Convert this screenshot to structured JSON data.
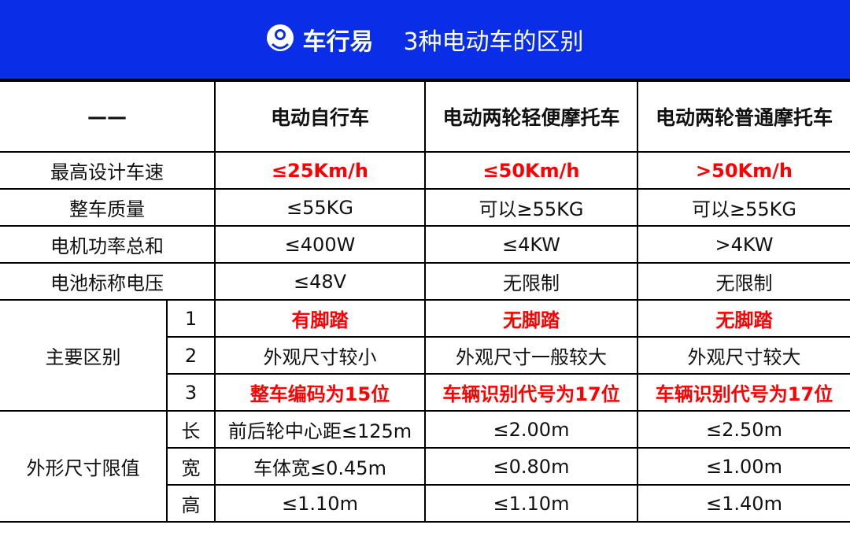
{
  "banner": {
    "brand": "车行易",
    "title": "3种电动车的区别",
    "color": "#0a2ee8",
    "logo_icon": "chexingyi-logo-icon"
  },
  "table": {
    "header": [
      "——",
      "电动自行车",
      "电动两轮轻便摩托车",
      "电动两轮普通摩托车"
    ],
    "rows": [
      {
        "label": "最高设计车速",
        "values": [
          "≤25Km/h",
          "≤50Km/h",
          ">50Km/h"
        ],
        "highlight": true
      },
      {
        "label": "整车质量",
        "values": [
          "≤55KG",
          "可以≥55KG",
          "可以≥55KG"
        ]
      },
      {
        "label": "电机功率总和",
        "values": [
          "≤400W",
          "≤4KW",
          ">4KW"
        ]
      },
      {
        "label": "电池标称电压",
        "values": [
          "≤48V",
          "无限制",
          "无限制"
        ]
      }
    ],
    "main_diff": {
      "label": "主要区别",
      "rows": [
        {
          "sub": "1",
          "values": [
            "有脚踏",
            "无脚踏",
            "无脚踏"
          ],
          "highlight": true
        },
        {
          "sub": "2",
          "values": [
            "外观尺寸较小",
            "外观尺寸一般较大",
            "外观尺寸较大"
          ]
        },
        {
          "sub": "3",
          "values": [
            "整车编码为15位",
            "车辆识别代号为17位",
            "车辆识别代号为17位"
          ],
          "highlight": true
        }
      ]
    },
    "size_limits": {
      "label": "外形尺寸限值",
      "rows": [
        {
          "sub": "长",
          "values": [
            "前后轮中心距≤125m",
            "≤2.00m",
            "≤2.50m"
          ]
        },
        {
          "sub": "宽",
          "values": [
            "车体宽≤0.45m",
            "≤0.80m",
            "≤1.00m"
          ]
        },
        {
          "sub": "高",
          "values": [
            "≤1.10m",
            "≤1.10m",
            "≤1.40m"
          ]
        }
      ]
    },
    "highlight_color": "#ff0000"
  }
}
